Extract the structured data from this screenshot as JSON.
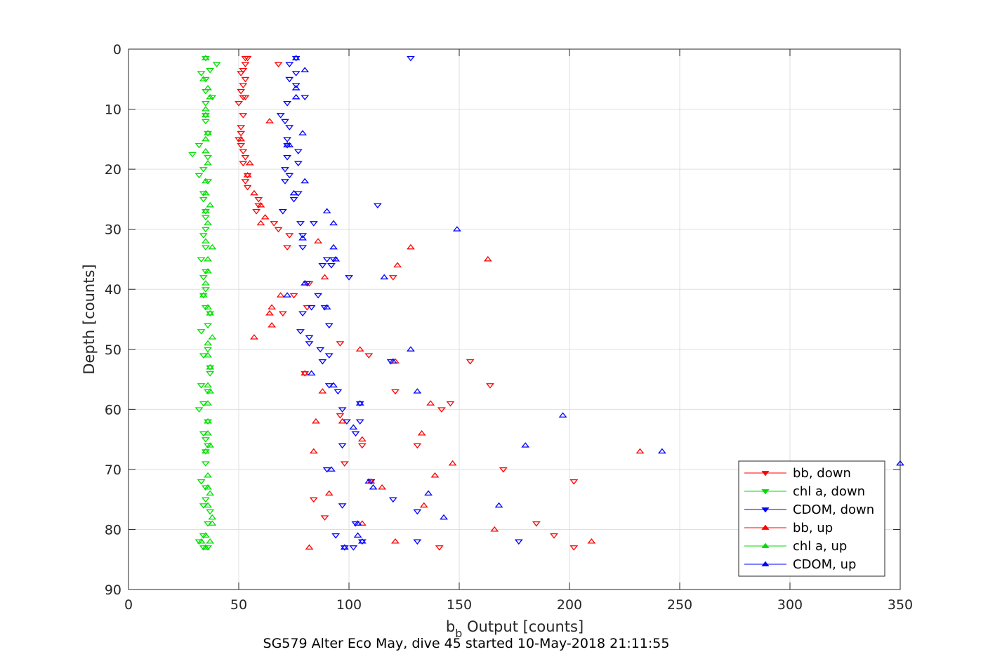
{
  "chart_data": {
    "type": "scatter",
    "xlabel": "b",
    "xlabel_sub": "b",
    "xlabel_suffix": " Output [counts]",
    "ylabel": "Depth [counts]",
    "footer_title": "SG579 Alter Eco May, dive 45 started 10-May-2018 21:11:55",
    "xlim": [
      0,
      350
    ],
    "ylim": [
      0,
      90
    ],
    "y_reversed": true,
    "grid": true,
    "legend_position": "bottom-right",
    "x_ticks": [
      0,
      50,
      100,
      150,
      200,
      250,
      300,
      350
    ],
    "y_ticks": [
      0,
      10,
      20,
      30,
      40,
      50,
      60,
      70,
      80,
      90
    ],
    "series": [
      {
        "name": "bb, down",
        "color": "#ff0000",
        "marker": "triangle-down",
        "points": [
          [
            54,
            1.5
          ],
          [
            53,
            1.5
          ],
          [
            68,
            2.5
          ],
          [
            53,
            2.5
          ],
          [
            52,
            3.5
          ],
          [
            51,
            4
          ],
          [
            53,
            5
          ],
          [
            52,
            6
          ],
          [
            51,
            7
          ],
          [
            52,
            8
          ],
          [
            53,
            8
          ],
          [
            50,
            9
          ],
          [
            52,
            11
          ],
          [
            51,
            13
          ],
          [
            51,
            14
          ],
          [
            50,
            15
          ],
          [
            51,
            16
          ],
          [
            52,
            17
          ],
          [
            53,
            18
          ],
          [
            52,
            19
          ],
          [
            54,
            21
          ],
          [
            53,
            22
          ],
          [
            54,
            23
          ],
          [
            59,
            25
          ],
          [
            59,
            26
          ],
          [
            58,
            27
          ],
          [
            66,
            29
          ],
          [
            68,
            30
          ],
          [
            73,
            31
          ],
          [
            72,
            33
          ],
          [
            120,
            38
          ],
          [
            82,
            39
          ],
          [
            75,
            41
          ],
          [
            81,
            43
          ],
          [
            70,
            44
          ],
          [
            96,
            49
          ],
          [
            109,
            51
          ],
          [
            155,
            52
          ],
          [
            80,
            54
          ],
          [
            164,
            56
          ],
          [
            121,
            57
          ],
          [
            146,
            59
          ],
          [
            142,
            60
          ],
          [
            96,
            61
          ],
          [
            131,
            66
          ],
          [
            106,
            66
          ],
          [
            98,
            69
          ],
          [
            170,
            70
          ],
          [
            110,
            72
          ],
          [
            202,
            72
          ],
          [
            84,
            75
          ],
          [
            89,
            78
          ],
          [
            185,
            79
          ],
          [
            193,
            81
          ],
          [
            202,
            83
          ],
          [
            141,
            83
          ]
        ]
      },
      {
        "name": "chl a, down",
        "color": "#00dd00",
        "marker": "triangle-down",
        "points": [
          [
            35,
            1.5
          ],
          [
            40,
            2.5
          ],
          [
            37,
            3.5
          ],
          [
            33,
            4
          ],
          [
            35,
            5
          ],
          [
            35,
            7
          ],
          [
            35,
            9
          ],
          [
            38,
            8
          ],
          [
            35,
            11
          ],
          [
            35,
            12
          ],
          [
            36,
            14
          ],
          [
            32,
            16
          ],
          [
            29,
            17.5
          ],
          [
            36,
            18
          ],
          [
            34,
            20
          ],
          [
            32,
            21
          ],
          [
            36,
            22
          ],
          [
            34,
            24
          ],
          [
            34,
            25
          ],
          [
            35,
            27
          ],
          [
            35,
            28
          ],
          [
            35,
            30
          ],
          [
            34,
            31
          ],
          [
            35,
            33
          ],
          [
            33,
            35
          ],
          [
            35,
            37
          ],
          [
            34,
            38
          ],
          [
            35,
            40
          ],
          [
            34,
            41
          ],
          [
            35,
            43
          ],
          [
            37,
            44
          ],
          [
            36,
            46
          ],
          [
            33,
            47
          ],
          [
            36,
            50
          ],
          [
            34,
            51
          ],
          [
            37,
            53
          ],
          [
            37,
            54
          ],
          [
            33,
            56
          ],
          [
            36,
            57
          ],
          [
            34,
            59
          ],
          [
            32,
            60
          ],
          [
            36,
            62
          ],
          [
            34,
            64
          ],
          [
            35,
            65
          ],
          [
            36,
            66
          ],
          [
            35,
            67
          ],
          [
            35,
            69
          ],
          [
            33,
            72
          ],
          [
            35,
            73
          ],
          [
            35,
            75
          ],
          [
            34,
            76
          ],
          [
            37,
            77
          ],
          [
            36,
            79
          ],
          [
            34,
            81
          ],
          [
            32,
            82
          ],
          [
            36,
            83
          ],
          [
            34,
            83
          ]
        ]
      },
      {
        "name": "CDOM, down",
        "color": "#0000ff",
        "marker": "triangle-down",
        "points": [
          [
            128,
            1.5
          ],
          [
            76,
            1.5
          ],
          [
            73,
            2.5
          ],
          [
            76,
            4
          ],
          [
            73,
            5
          ],
          [
            76,
            6
          ],
          [
            80,
            8
          ],
          [
            72,
            9
          ],
          [
            69,
            11
          ],
          [
            71,
            12
          ],
          [
            73,
            13
          ],
          [
            72,
            15
          ],
          [
            72,
            16
          ],
          [
            77,
            17
          ],
          [
            72,
            18
          ],
          [
            77,
            19
          ],
          [
            71,
            20
          ],
          [
            73,
            21
          ],
          [
            71,
            22
          ],
          [
            77,
            24
          ],
          [
            75,
            25
          ],
          [
            113,
            26
          ],
          [
            70,
            27
          ],
          [
            78,
            29
          ],
          [
            84,
            29
          ],
          [
            79,
            31
          ],
          [
            79,
            33
          ],
          [
            93,
            35
          ],
          [
            90,
            35
          ],
          [
            88,
            36
          ],
          [
            92,
            36
          ],
          [
            100,
            38
          ],
          [
            81,
            39
          ],
          [
            86,
            41
          ],
          [
            89,
            43
          ],
          [
            83,
            43
          ],
          [
            79,
            44
          ],
          [
            91,
            46
          ],
          [
            78,
            47
          ],
          [
            82,
            48
          ],
          [
            82,
            49
          ],
          [
            87,
            50
          ],
          [
            91,
            51
          ],
          [
            88,
            52
          ],
          [
            119,
            52
          ],
          [
            91,
            56
          ],
          [
            95,
            57
          ],
          [
            105,
            59
          ],
          [
            97,
            60
          ],
          [
            105,
            62
          ],
          [
            99,
            62
          ],
          [
            103,
            64
          ],
          [
            97,
            66
          ],
          [
            90,
            70
          ],
          [
            110,
            72
          ],
          [
            120,
            75
          ],
          [
            97,
            76
          ],
          [
            131,
            77
          ],
          [
            103,
            79
          ],
          [
            94,
            81
          ],
          [
            131,
            82
          ],
          [
            177,
            82
          ],
          [
            106,
            82
          ],
          [
            102,
            83
          ],
          [
            98,
            83
          ]
        ]
      },
      {
        "name": "bb, up",
        "color": "#ff0000",
        "marker": "triangle-up",
        "points": [
          [
            64,
            12
          ],
          [
            51,
            15
          ],
          [
            55,
            19
          ],
          [
            54,
            21
          ],
          [
            57,
            24
          ],
          [
            60,
            26
          ],
          [
            62,
            28
          ],
          [
            60,
            29
          ],
          [
            86,
            32
          ],
          [
            128,
            33
          ],
          [
            163,
            35
          ],
          [
            122,
            36
          ],
          [
            89,
            38
          ],
          [
            80,
            39
          ],
          [
            69,
            41
          ],
          [
            65,
            43
          ],
          [
            64,
            44
          ],
          [
            65,
            46
          ],
          [
            57,
            48
          ],
          [
            105,
            50
          ],
          [
            121,
            52
          ],
          [
            80,
            54
          ],
          [
            88,
            57
          ],
          [
            137,
            59
          ],
          [
            97,
            62
          ],
          [
            85,
            62
          ],
          [
            133,
            64
          ],
          [
            106,
            65
          ],
          [
            84,
            67
          ],
          [
            147,
            69
          ],
          [
            232,
            67
          ],
          [
            139,
            71
          ],
          [
            115,
            73
          ],
          [
            110,
            72
          ],
          [
            91,
            74
          ],
          [
            134,
            76
          ],
          [
            106,
            79
          ],
          [
            166,
            80
          ],
          [
            210,
            82
          ],
          [
            121,
            82
          ],
          [
            82,
            83
          ]
        ]
      },
      {
        "name": "chl a, up",
        "color": "#00dd00",
        "marker": "triangle-up",
        "points": [
          [
            35,
            1.5
          ],
          [
            34,
            5
          ],
          [
            36,
            6.5
          ],
          [
            37,
            8
          ],
          [
            35,
            10
          ],
          [
            35,
            11
          ],
          [
            36,
            14
          ],
          [
            35,
            15
          ],
          [
            35,
            17
          ],
          [
            36,
            19
          ],
          [
            35,
            22
          ],
          [
            35,
            24
          ],
          [
            37,
            26
          ],
          [
            35,
            27
          ],
          [
            36,
            29
          ],
          [
            35,
            32
          ],
          [
            38,
            33
          ],
          [
            36,
            35
          ],
          [
            36,
            37
          ],
          [
            35,
            39
          ],
          [
            34,
            41
          ],
          [
            36,
            43
          ],
          [
            37,
            44
          ],
          [
            38,
            48
          ],
          [
            36,
            49
          ],
          [
            36,
            51
          ],
          [
            37,
            53
          ],
          [
            36,
            56
          ],
          [
            37,
            57
          ],
          [
            36,
            59
          ],
          [
            36,
            62
          ],
          [
            36,
            64
          ],
          [
            37,
            66
          ],
          [
            35,
            67
          ],
          [
            36,
            71
          ],
          [
            36,
            73
          ],
          [
            37,
            74
          ],
          [
            36,
            76
          ],
          [
            38,
            78
          ],
          [
            38,
            79
          ],
          [
            35,
            81
          ],
          [
            33,
            82
          ],
          [
            37,
            82
          ],
          [
            35,
            83
          ],
          [
            35,
            83
          ]
        ]
      },
      {
        "name": "CDOM, up",
        "color": "#0000ff",
        "marker": "triangle-up",
        "points": [
          [
            76,
            1.5
          ],
          [
            80,
            3.5
          ],
          [
            76,
            6.5
          ],
          [
            76,
            8
          ],
          [
            79,
            14
          ],
          [
            73,
            16
          ],
          [
            72,
            16
          ],
          [
            75,
            24
          ],
          [
            80,
            22
          ],
          [
            90,
            27
          ],
          [
            93,
            29
          ],
          [
            149,
            30
          ],
          [
            79,
            31.5
          ],
          [
            93,
            33
          ],
          [
            94,
            35
          ],
          [
            116,
            38
          ],
          [
            80,
            39
          ],
          [
            72,
            41
          ],
          [
            90,
            43
          ],
          [
            128,
            50
          ],
          [
            120,
            52
          ],
          [
            83,
            54
          ],
          [
            93,
            56
          ],
          [
            131,
            57
          ],
          [
            197,
            61
          ],
          [
            105,
            59
          ],
          [
            102,
            63
          ],
          [
            180,
            66
          ],
          [
            242,
            67
          ],
          [
            350,
            69
          ],
          [
            92,
            70
          ],
          [
            109,
            72
          ],
          [
            111,
            73
          ],
          [
            136,
            74
          ],
          [
            168,
            76
          ],
          [
            143,
            78
          ],
          [
            104,
            79
          ],
          [
            104,
            81
          ],
          [
            106,
            82
          ],
          [
            98,
            83
          ],
          [
            98,
            83
          ]
        ]
      }
    ]
  }
}
